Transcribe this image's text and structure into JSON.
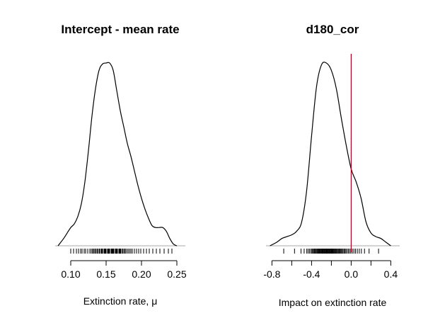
{
  "chart_data": [
    {
      "type": "density",
      "title": "Intercept - mean rate",
      "xlabel": "Extinction rate, μ",
      "ylabel": "",
      "xlim": [
        0.078,
        0.262
      ],
      "xticks": [
        0.1,
        0.15,
        0.2,
        0.25
      ],
      "xtick_labels": [
        "0.10",
        "0.15",
        "0.20",
        "0.25"
      ],
      "grid": false,
      "line_color": "#000000",
      "x": [
        0.082,
        0.09,
        0.095,
        0.1,
        0.105,
        0.11,
        0.115,
        0.12,
        0.125,
        0.13,
        0.135,
        0.14,
        0.145,
        0.15,
        0.155,
        0.16,
        0.165,
        0.17,
        0.175,
        0.18,
        0.185,
        0.19,
        0.195,
        0.2,
        0.205,
        0.21,
        0.215,
        0.22,
        0.225,
        0.23,
        0.235,
        0.24,
        0.245,
        0.25
      ],
      "density": [
        0.0,
        0.04,
        0.07,
        0.1,
        0.12,
        0.16,
        0.23,
        0.35,
        0.52,
        0.71,
        0.86,
        0.96,
        0.995,
        1.0,
        1.0,
        0.96,
        0.85,
        0.74,
        0.65,
        0.56,
        0.49,
        0.41,
        0.33,
        0.26,
        0.2,
        0.15,
        0.11,
        0.1,
        0.1,
        0.1,
        0.08,
        0.04,
        0.01,
        0.0
      ],
      "rug": [
        0.1,
        0.104,
        0.108,
        0.111,
        0.114,
        0.116,
        0.119,
        0.121,
        0.124,
        0.127,
        0.129,
        0.131,
        0.132,
        0.134,
        0.135,
        0.137,
        0.138,
        0.14,
        0.141,
        0.143,
        0.144,
        0.145,
        0.147,
        0.148,
        0.149,
        0.15,
        0.152,
        0.153,
        0.154,
        0.155,
        0.157,
        0.158,
        0.159,
        0.16,
        0.161,
        0.163,
        0.164,
        0.165,
        0.166,
        0.168,
        0.169,
        0.17,
        0.171,
        0.173,
        0.174,
        0.176,
        0.177,
        0.179,
        0.181,
        0.183,
        0.185,
        0.187,
        0.19,
        0.193,
        0.196,
        0.199,
        0.203,
        0.207,
        0.211,
        0.216,
        0.221,
        0.226,
        0.232,
        0.238,
        0.243
      ]
    },
    {
      "type": "density",
      "title": "d180_cor",
      "xlabel": "Impact on extinction rate",
      "ylabel": "",
      "xlim": [
        -0.86,
        0.49
      ],
      "xticks": [
        -0.8,
        -0.4,
        0.0,
        0.4
      ],
      "xtick_labels": [
        "-0.8",
        "-0.4",
        "0.0",
        "0.4"
      ],
      "minor_ticks": [
        -0.6,
        -0.2,
        0.2
      ],
      "reference_line": 0.0,
      "reference_color": "#b00020",
      "grid": false,
      "line_color": "#000000",
      "x": [
        -0.82,
        -0.75,
        -0.7,
        -0.65,
        -0.6,
        -0.55,
        -0.5,
        -0.45,
        -0.4,
        -0.35,
        -0.3,
        -0.25,
        -0.2,
        -0.15,
        -0.1,
        -0.05,
        0.0,
        0.05,
        0.1,
        0.15,
        0.2,
        0.25,
        0.3,
        0.35,
        0.4
      ],
      "density": [
        0.0,
        0.02,
        0.04,
        0.05,
        0.06,
        0.08,
        0.13,
        0.3,
        0.6,
        0.87,
        0.99,
        1.0,
        0.96,
        0.86,
        0.7,
        0.55,
        0.42,
        0.35,
        0.26,
        0.13,
        0.07,
        0.05,
        0.04,
        0.02,
        0.0
      ]
    }
  ]
}
